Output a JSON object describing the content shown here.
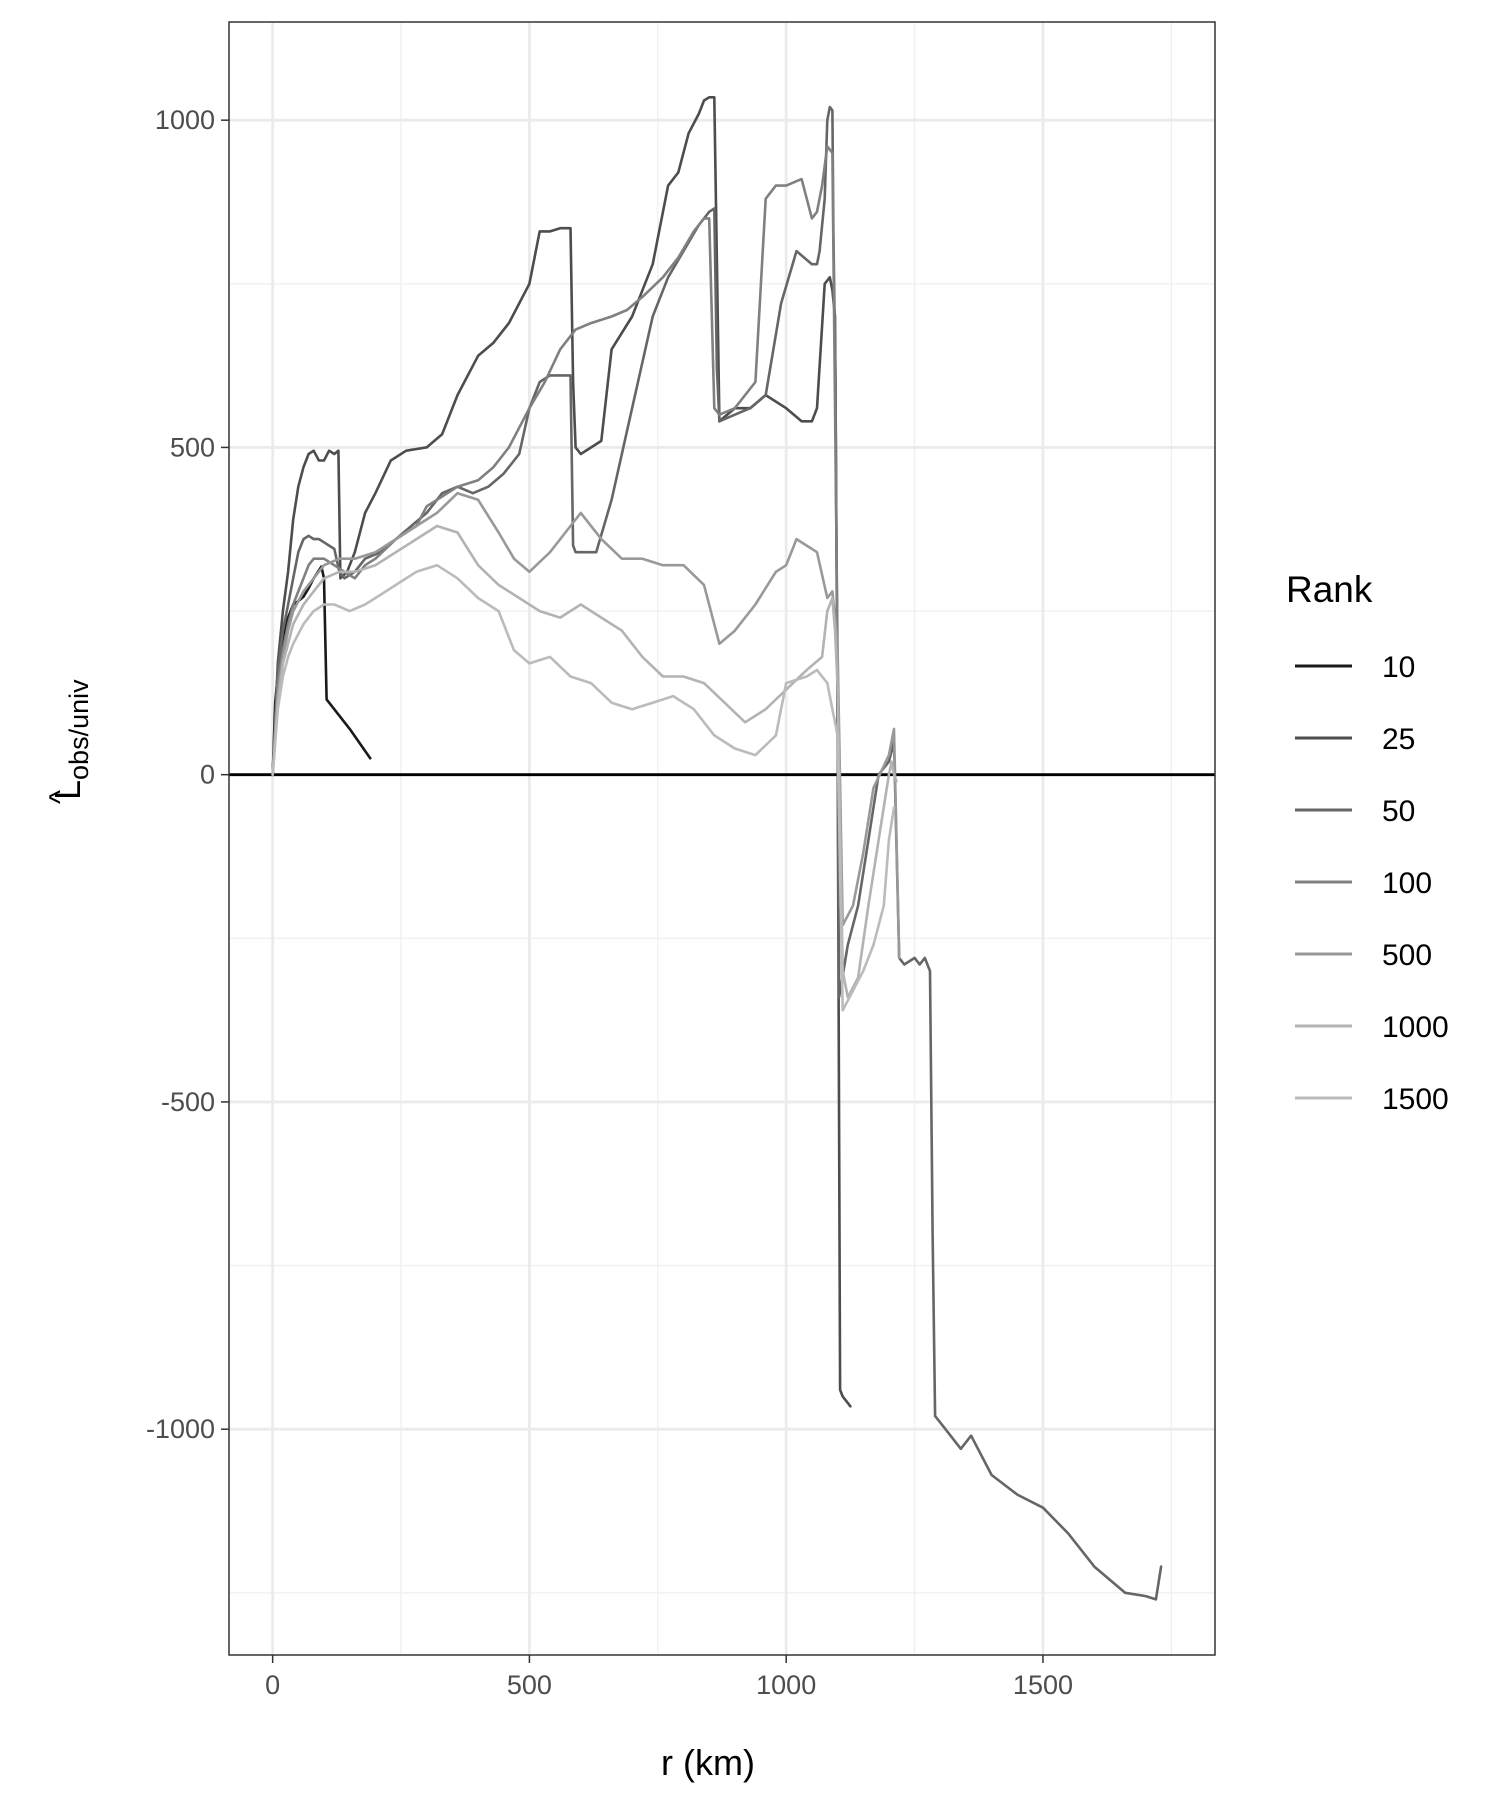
{
  "chart_data": {
    "type": "line",
    "title": "",
    "xlabel": "r (km)",
    "ylabel_main": "L",
    "ylabel_hat": "^",
    "ylabel_subscript": "obs/univ",
    "xlim": [
      -85,
      1835
    ],
    "ylim": [
      -1345,
      1150
    ],
    "xticks": [
      0,
      500,
      1000,
      1500
    ],
    "xtick_labels": [
      "0",
      "500",
      "1000",
      "1500"
    ],
    "yticks": [
      -1000,
      -500,
      0,
      500,
      1000
    ],
    "ytick_labels": [
      "-1000",
      "-500",
      "0",
      "500",
      "1000"
    ],
    "x_minor_gridlines": [
      250,
      750,
      1250,
      1750
    ],
    "y_minor_gridlines": [
      -1250,
      -750,
      -250,
      250,
      750
    ],
    "grid": true,
    "reference_line_y": 0,
    "legend": {
      "title": "Rank",
      "position": "right"
    },
    "series": [
      {
        "name": "10",
        "color": "#1a1a1a",
        "x": [
          0,
          5,
          12,
          20,
          30,
          40,
          50,
          60,
          70,
          80,
          90,
          95,
          100,
          105,
          150,
          190
        ],
        "y": [
          0,
          110,
          170,
          210,
          240,
          260,
          265,
          272,
          285,
          300,
          312,
          318,
          300,
          115,
          70,
          25
        ]
      },
      {
        "name": "25",
        "color": "#4d4d4d",
        "x": [
          0,
          10,
          20,
          30,
          40,
          50,
          60,
          70,
          80,
          90,
          100,
          110,
          120,
          128,
          132,
          145,
          160,
          180,
          200,
          230,
          260,
          300,
          330,
          360,
          400,
          430,
          460,
          480,
          500,
          520,
          540,
          560,
          580,
          585,
          590,
          600,
          640,
          660,
          700,
          740,
          770,
          790,
          810,
          830,
          840,
          850,
          860,
          870,
          900,
          930,
          960,
          1000,
          1030,
          1050,
          1060,
          1075,
          1085,
          1090,
          1095,
          1100,
          1105,
          1110,
          1125
        ],
        "y": [
          0,
          170,
          250,
          310,
          390,
          440,
          470,
          490,
          495,
          480,
          480,
          495,
          490,
          495,
          300,
          310,
          340,
          400,
          430,
          480,
          495,
          500,
          520,
          580,
          640,
          660,
          690,
          720,
          750,
          830,
          830,
          835,
          835,
          600,
          500,
          490,
          510,
          650,
          700,
          780,
          900,
          920,
          980,
          1010,
          1030,
          1035,
          1035,
          540,
          560,
          560,
          580,
          560,
          540,
          540,
          560,
          750,
          760,
          740,
          700,
          100,
          -940,
          -950,
          -965
        ]
      },
      {
        "name": "50",
        "color": "#666666",
        "x": [
          0,
          10,
          20,
          30,
          40,
          50,
          60,
          70,
          80,
          90,
          100,
          110,
          120,
          130,
          140,
          160,
          180,
          210,
          240,
          270,
          300,
          330,
          360,
          390,
          420,
          450,
          480,
          500,
          520,
          540,
          560,
          580,
          585,
          590,
          630,
          660,
          700,
          740,
          770,
          800,
          830,
          850,
          860,
          865,
          870,
          900,
          930,
          960,
          990,
          1020,
          1050,
          1060,
          1065,
          1075,
          1080,
          1085,
          1090,
          1092,
          1096,
          1100,
          1103,
          1120,
          1140,
          1160,
          1180,
          1200,
          1210,
          1220,
          1230,
          1250,
          1260,
          1270,
          1280,
          1285,
          1290,
          1300,
          1340,
          1360,
          1400,
          1450,
          1500,
          1550,
          1600,
          1660,
          1700,
          1720,
          1730
        ],
        "y": [
          0,
          160,
          220,
          260,
          300,
          340,
          360,
          365,
          360,
          360,
          355,
          350,
          345,
          310,
          300,
          310,
          330,
          340,
          360,
          380,
          400,
          430,
          440,
          430,
          440,
          460,
          490,
          560,
          600,
          610,
          610,
          610,
          350,
          340,
          340,
          420,
          560,
          700,
          760,
          800,
          840,
          860,
          865,
          620,
          540,
          550,
          560,
          580,
          720,
          800,
          780,
          780,
          800,
          880,
          1000,
          1020,
          1015,
          830,
          600,
          100,
          -340,
          -260,
          -200,
          -100,
          0,
          20,
          50,
          -280,
          -290,
          -280,
          -290,
          -280,
          -300,
          -700,
          -980,
          -990,
          -1030,
          -1010,
          -1070,
          -1100,
          -1120,
          -1160,
          -1210,
          -1250,
          -1255,
          -1260,
          -1210
        ]
      },
      {
        "name": "100",
        "color": "#808080",
        "x": [
          0,
          10,
          20,
          30,
          40,
          50,
          60,
          70,
          80,
          100,
          120,
          140,
          160,
          180,
          200,
          240,
          280,
          300,
          320,
          360,
          400,
          430,
          460,
          500,
          530,
          560,
          590,
          620,
          660,
          690,
          720,
          760,
          790,
          820,
          840,
          850,
          860,
          870,
          900,
          940,
          960,
          980,
          1000,
          1030,
          1050,
          1060,
          1070,
          1080,
          1090,
          1100,
          1105
        ],
        "y": [
          0,
          140,
          190,
          230,
          260,
          280,
          300,
          320,
          330,
          330,
          320,
          310,
          300,
          320,
          330,
          360,
          380,
          410,
          420,
          440,
          450,
          470,
          500,
          560,
          600,
          650,
          680,
          690,
          700,
          710,
          730,
          760,
          790,
          830,
          850,
          850,
          560,
          550,
          560,
          600,
          880,
          900,
          900,
          910,
          850,
          860,
          900,
          960,
          950,
          200,
          -200
        ]
      },
      {
        "name": "500",
        "color": "#999999",
        "x": [
          0,
          10,
          20,
          30,
          40,
          60,
          80,
          100,
          130,
          160,
          200,
          240,
          280,
          320,
          360,
          400,
          440,
          470,
          500,
          540,
          580,
          600,
          640,
          680,
          720,
          760,
          800,
          840,
          870,
          900,
          940,
          980,
          1000,
          1020,
          1040,
          1060,
          1080,
          1090,
          1100,
          1110,
          1130,
          1150,
          1170,
          1200,
          1210,
          1220
        ],
        "y": [
          0,
          120,
          180,
          220,
          250,
          280,
          300,
          320,
          330,
          330,
          340,
          360,
          380,
          400,
          430,
          420,
          370,
          330,
          310,
          340,
          380,
          400,
          360,
          330,
          330,
          320,
          320,
          290,
          200,
          220,
          260,
          310,
          320,
          360,
          350,
          340,
          270,
          280,
          200,
          -230,
          -200,
          -120,
          -20,
          30,
          70,
          -280
        ]
      },
      {
        "name": "1000",
        "color": "#b3b3b3",
        "x": [
          0,
          10,
          20,
          30,
          40,
          60,
          80,
          100,
          130,
          160,
          200,
          240,
          280,
          320,
          360,
          400,
          440,
          480,
          520,
          560,
          600,
          640,
          680,
          720,
          760,
          800,
          840,
          880,
          920,
          960,
          1000,
          1040,
          1070,
          1080,
          1090,
          1095,
          1100,
          1110,
          1120,
          1140,
          1160,
          1180,
          1200,
          1205,
          1210,
          1215
        ],
        "y": [
          0,
          110,
          170,
          200,
          230,
          260,
          280,
          300,
          310,
          310,
          320,
          340,
          360,
          380,
          370,
          320,
          290,
          270,
          250,
          240,
          260,
          240,
          220,
          180,
          150,
          150,
          140,
          110,
          80,
          100,
          130,
          160,
          180,
          250,
          270,
          220,
          140,
          -300,
          -340,
          -310,
          -200,
          -100,
          0,
          20,
          0,
          -10
        ]
      },
      {
        "name": "1500",
        "color": "#bbbbbb",
        "x": [
          0,
          10,
          20,
          30,
          40,
          60,
          80,
          100,
          120,
          150,
          180,
          200,
          240,
          280,
          320,
          360,
          400,
          440,
          470,
          500,
          540,
          580,
          620,
          660,
          700,
          740,
          780,
          820,
          860,
          900,
          940,
          980,
          1000,
          1040,
          1060,
          1070,
          1080,
          1090,
          1095,
          1100,
          1110,
          1130,
          1150,
          1170,
          1190,
          1200,
          1210
        ],
        "y": [
          0,
          100,
          150,
          180,
          200,
          230,
          250,
          260,
          260,
          250,
          260,
          270,
          290,
          310,
          320,
          300,
          270,
          250,
          190,
          170,
          180,
          150,
          140,
          110,
          100,
          110,
          120,
          100,
          60,
          40,
          30,
          60,
          140,
          150,
          160,
          150,
          140,
          100,
          80,
          60,
          -360,
          -330,
          -300,
          -260,
          -200,
          -100,
          -50
        ]
      }
    ]
  }
}
